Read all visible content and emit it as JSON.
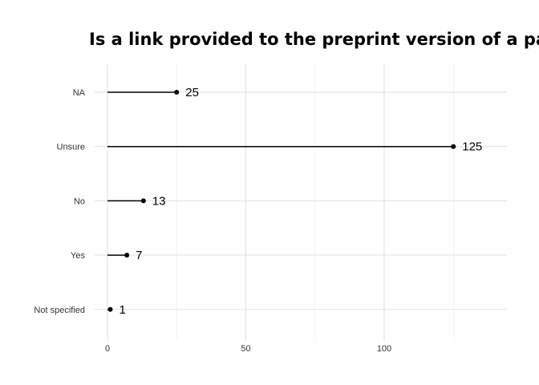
{
  "chart_data": {
    "type": "lollipop",
    "title": "Is a link provided to the preprint version of a paper?",
    "xlabel": "",
    "ylabel": "",
    "categories": [
      "NA",
      "Unsure",
      "No",
      "Yes",
      "Not specified"
    ],
    "values": [
      25,
      125,
      13,
      7,
      1
    ],
    "data_labels": [
      "25",
      "125",
      "13",
      "7",
      "1"
    ],
    "x_ticks": [
      0,
      50,
      100
    ],
    "x_tick_labels": [
      "0",
      "50",
      "100"
    ],
    "xlim": [
      0,
      143
    ],
    "grid": true,
    "legend": "none"
  }
}
